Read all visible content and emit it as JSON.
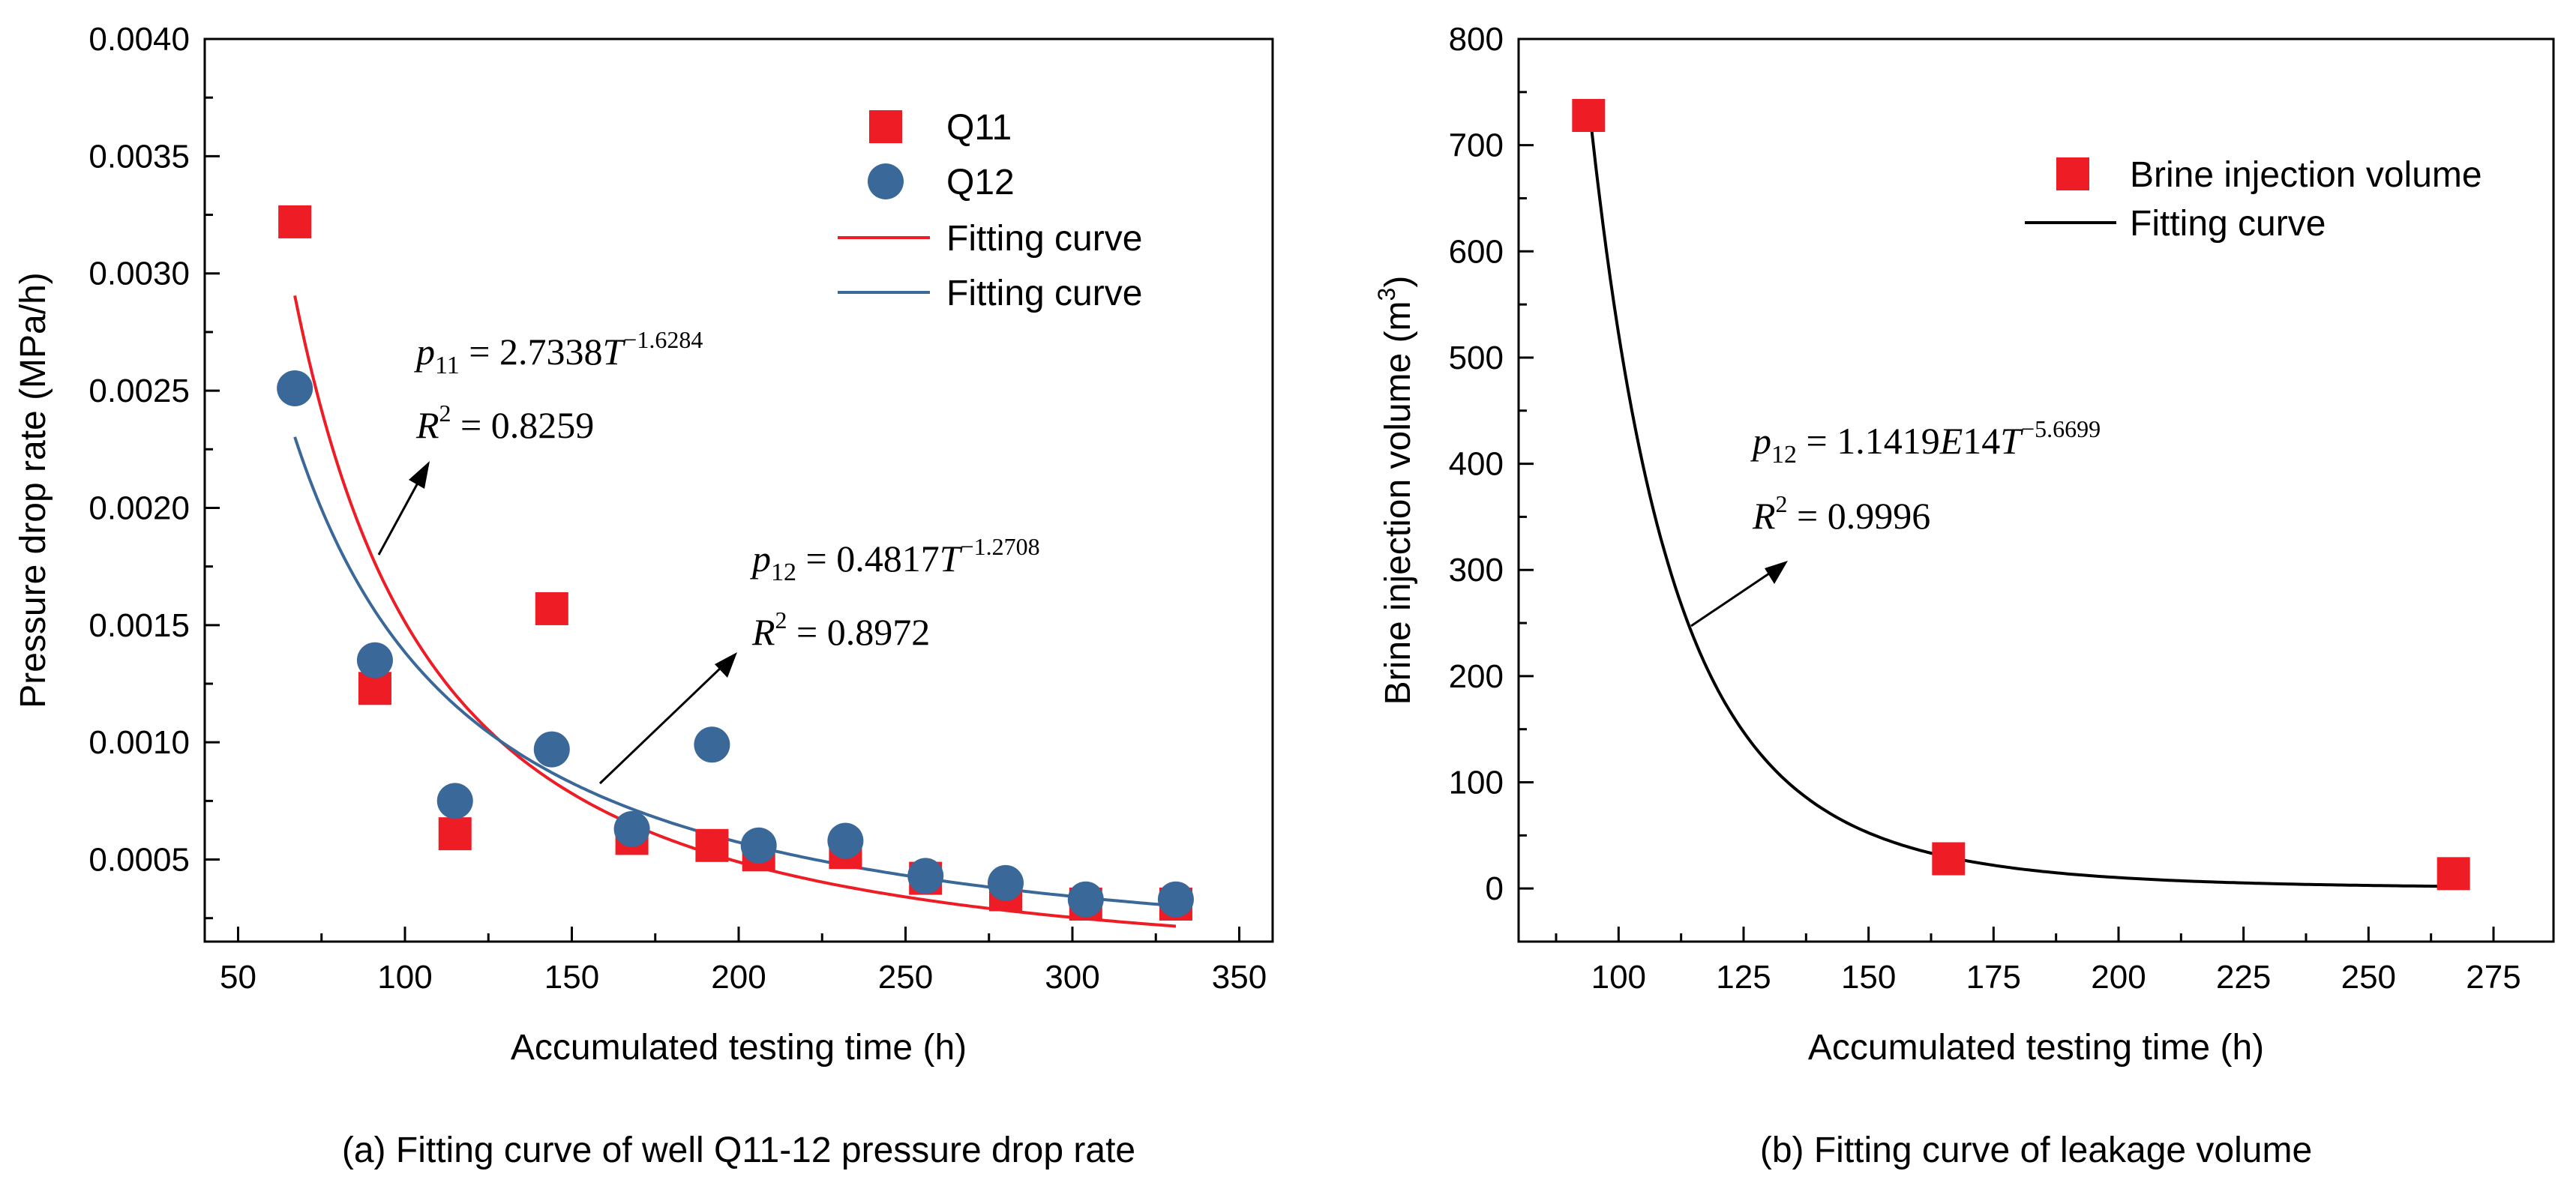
{
  "chart_data": [
    {
      "type": "scatter",
      "caption": "(a) Fitting curve of well Q11-12 pressure drop rate",
      "xlabel": "Accumulated testing time (h)",
      "ylabel": "Pressure drop rate (MPa/h)",
      "xlim": [
        40,
        360
      ],
      "ylim": [
        0.00015,
        0.004
      ],
      "xticks": [
        50,
        100,
        150,
        200,
        250,
        300,
        350
      ],
      "xtick_labels": [
        "50",
        "100",
        "150",
        "200",
        "250",
        "300",
        "350"
      ],
      "yticks": [
        0.0005,
        0.001,
        0.0015,
        0.002,
        0.0025,
        0.003,
        0.0035,
        0.004
      ],
      "ytick_labels": [
        "0.0005",
        "0.0010",
        "0.0015",
        "0.0020",
        "0.0025",
        "0.0030",
        "0.0035",
        "0.0040"
      ],
      "series": [
        {
          "name": "Q11",
          "marker": "square",
          "color": "#ee1c25",
          "x": [
            67,
            91,
            115,
            144,
            168,
            192,
            206,
            232,
            256,
            280,
            304,
            331
          ],
          "y": [
            0.00322,
            0.00123,
            0.00061,
            0.00157,
            0.00059,
            0.00056,
            0.00052,
            0.00053,
            0.00042,
            0.00035,
            0.00031,
            0.00031
          ]
        },
        {
          "name": "Q12",
          "marker": "circle",
          "color": "#3a6898",
          "x": [
            67,
            91,
            115,
            144,
            168,
            192,
            206,
            232,
            256,
            280,
            304,
            331
          ],
          "y": [
            0.00251,
            0.00135,
            0.00075,
            0.00097,
            0.00063,
            0.00099,
            0.00056,
            0.00058,
            0.00043,
            0.0004,
            0.00033,
            0.00033
          ]
        }
      ],
      "curves": [
        {
          "name": "Fitting curve",
          "color": "#ee1c25",
          "a": 2.7338,
          "b": -1.6284,
          "x_range": [
            67,
            331
          ]
        },
        {
          "name": "Fitting curve",
          "color": "#3a6898",
          "a": 0.4817,
          "b": -1.2708,
          "x_range": [
            67,
            331
          ]
        }
      ],
      "legend": [
        "Q11",
        "Q12",
        "Fitting curve",
        "Fitting curve"
      ],
      "legend_position": "top-right",
      "annotations": [
        {
          "var": "p",
          "sub": "11",
          "coef": "2.7338",
          "base": "T",
          "exponent": "−1.6284",
          "r2_label": "R",
          "r2_sup": "2",
          "r2_value": "0.8259"
        },
        {
          "var": "p",
          "sub": "12",
          "coef": "0.4817",
          "base": "T",
          "exponent": "−1.2708",
          "r2_label": "R",
          "r2_sup": "2",
          "r2_value": "0.8972"
        }
      ]
    },
    {
      "type": "scatter",
      "caption": "(b) Fitting curve of leakage volume",
      "xlabel": "Accumulated testing time (h)",
      "ylabel_main": "Brine injection volume (m",
      "ylabel_sup": "3",
      "ylabel_end": ")",
      "xlim": [
        80,
        287
      ],
      "ylim": [
        -50,
        800
      ],
      "xticks": [
        100,
        125,
        150,
        175,
        200,
        225,
        250,
        275
      ],
      "xtick_labels": [
        "100",
        "125",
        "150",
        "175",
        "200",
        "225",
        "250",
        "275"
      ],
      "yticks": [
        0,
        100,
        200,
        300,
        400,
        500,
        600,
        700,
        800
      ],
      "ytick_labels": [
        "0",
        "100",
        "200",
        "300",
        "400",
        "500",
        "600",
        "700",
        "800"
      ],
      "series": [
        {
          "name": "Brine injection volume",
          "marker": "square",
          "color": "#ee1c25",
          "x": [
            94,
            166,
            267
          ],
          "y": [
            728,
            28,
            14
          ]
        }
      ],
      "curves": [
        {
          "name": "Fitting curve",
          "color": "#000000",
          "a": 114190000000000,
          "b": -5.6699,
          "x_range": [
            94,
            267
          ]
        }
      ],
      "legend": [
        "Brine injection volume",
        "Fitting curve"
      ],
      "legend_position": "top-right",
      "annotations": [
        {
          "var": "p",
          "sub": "12",
          "coef": "1.1419",
          "e_label": "E",
          "e_value": "14",
          "base": "T",
          "exponent": "−5.6699",
          "r2_label": "R",
          "r2_sup": "2",
          "r2_value": "0.9996"
        }
      ]
    }
  ]
}
